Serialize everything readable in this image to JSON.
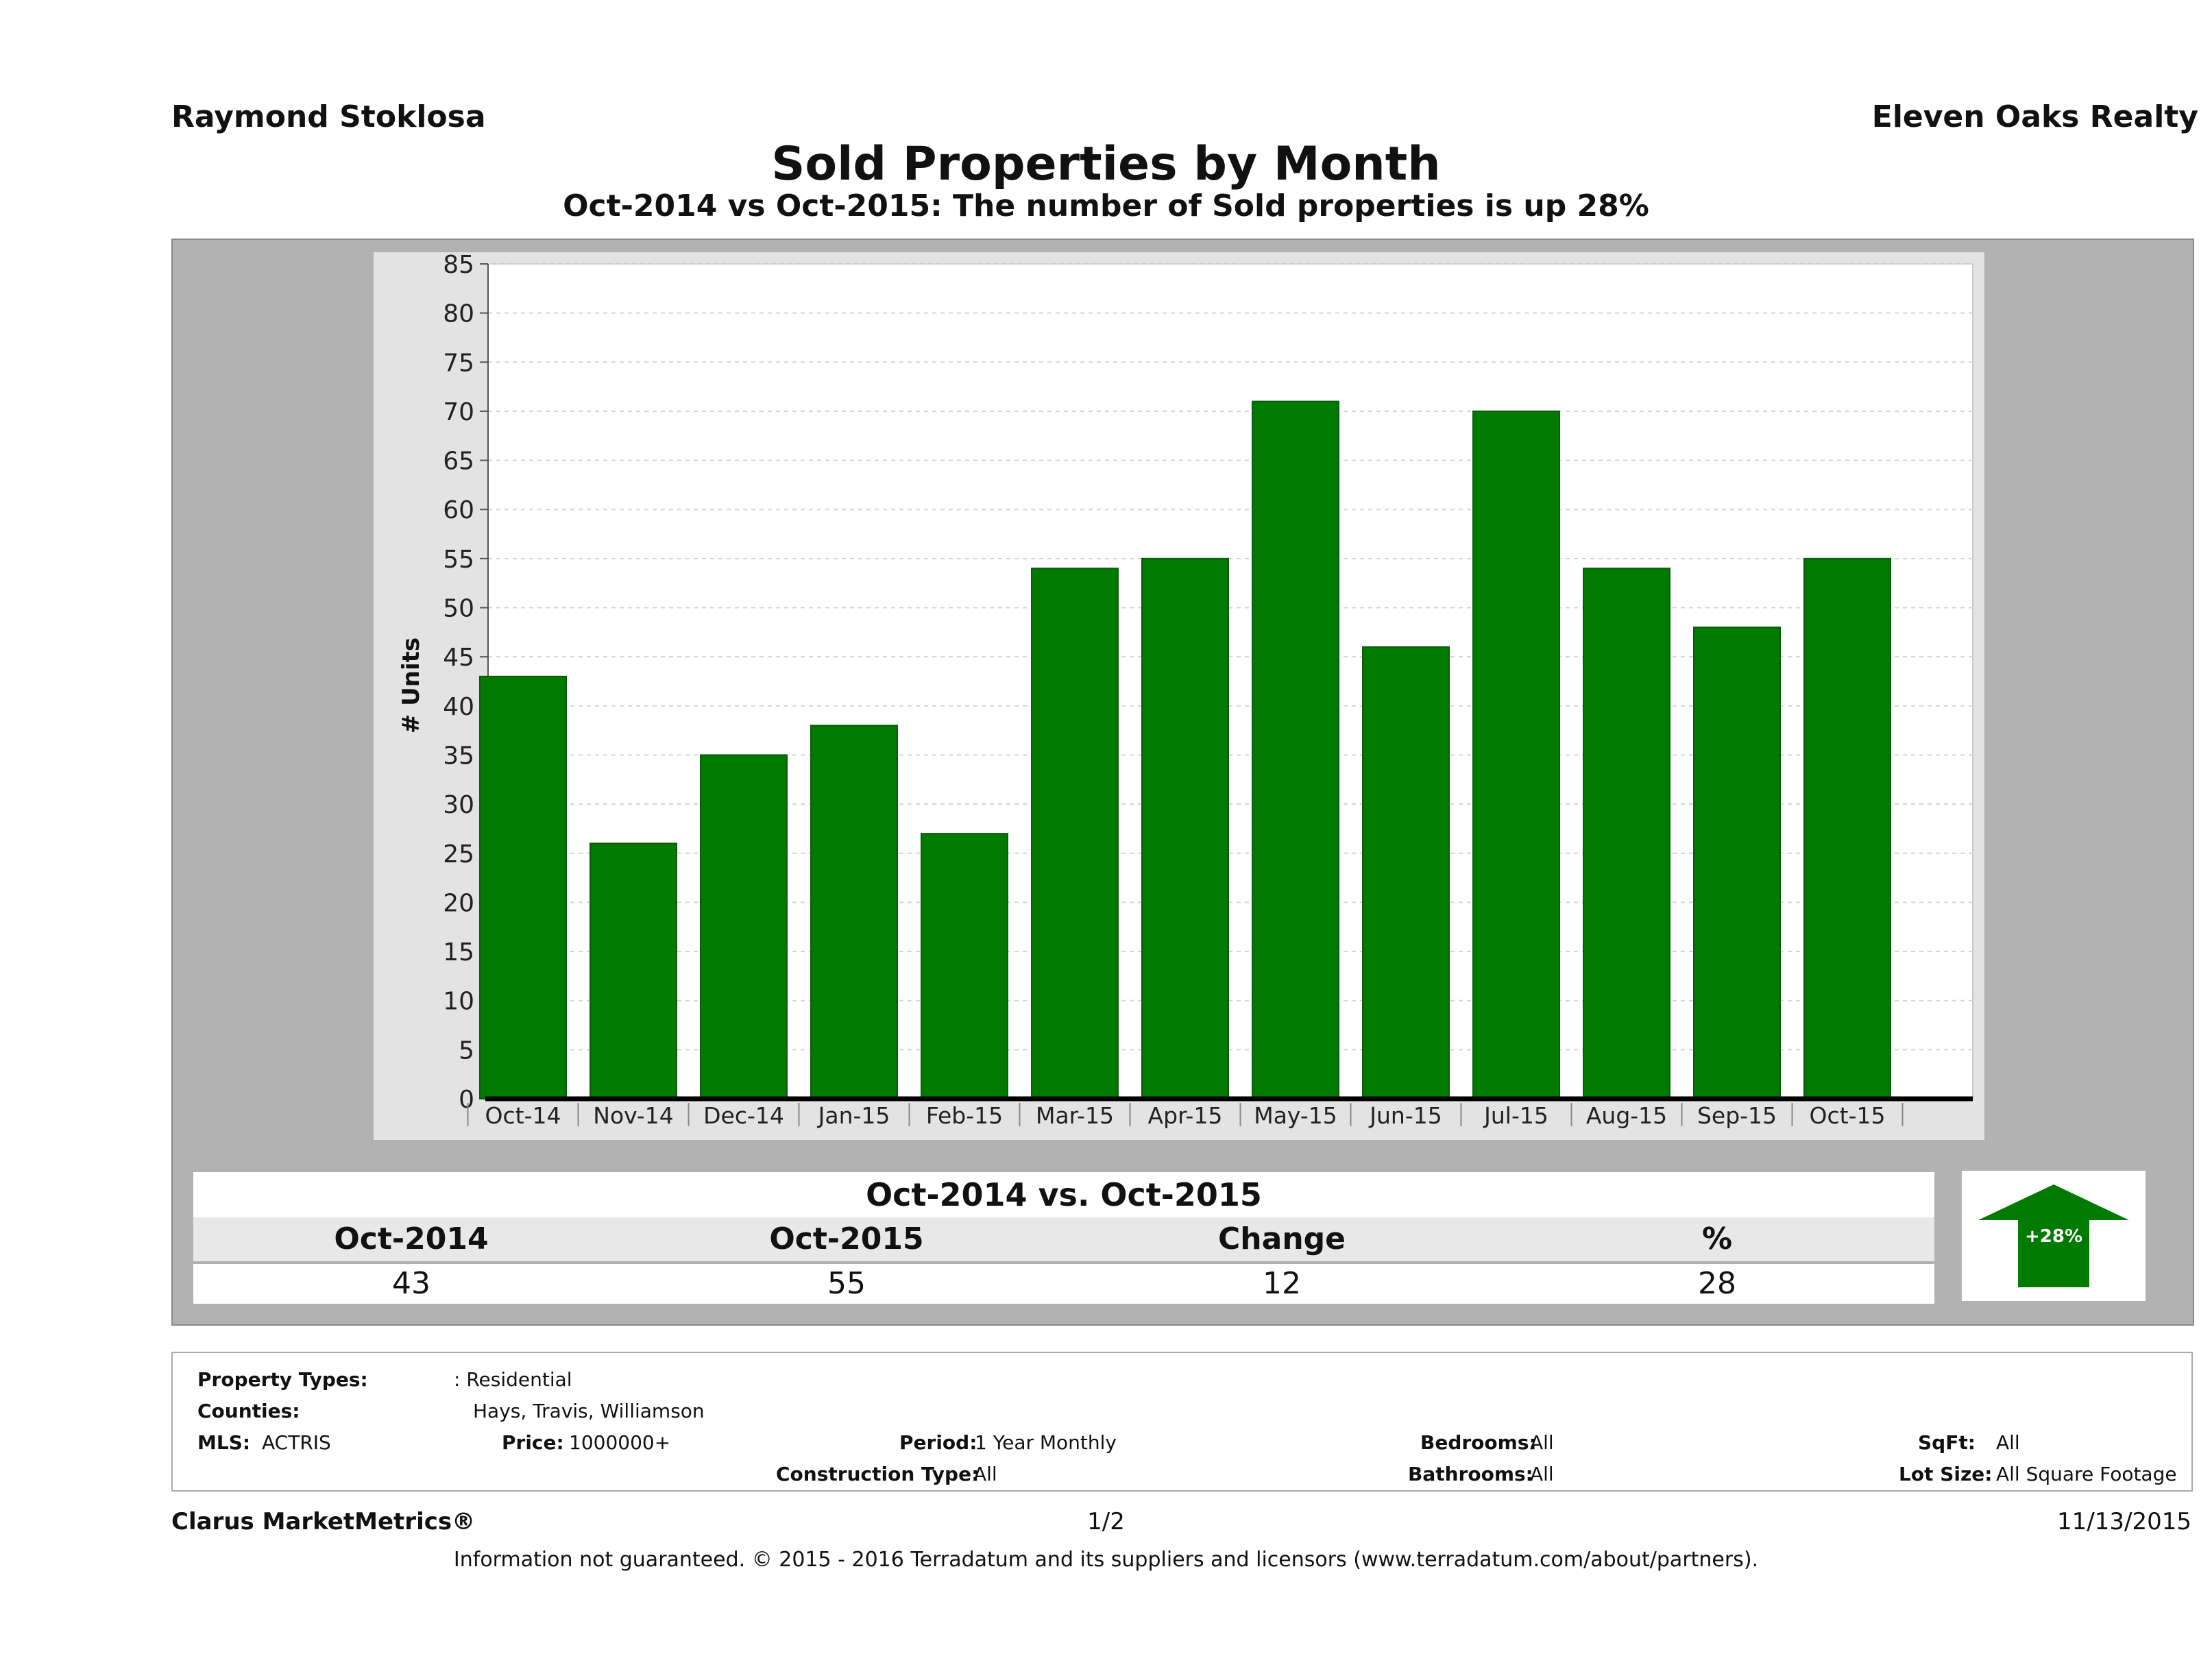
{
  "header": {
    "agent": "Raymond Stoklosa",
    "brokerage": "Eleven Oaks Realty",
    "title": "Sold Properties by Month",
    "subtitle": "Oct-2014 vs Oct-2015: The number of Sold   properties is up 28%"
  },
  "chart_data": {
    "type": "bar",
    "categories": [
      "Oct-14",
      "Nov-14",
      "Dec-14",
      "Jan-15",
      "Feb-15",
      "Mar-15",
      "Apr-15",
      "May-15",
      "Jun-15",
      "Jul-15",
      "Aug-15",
      "Sep-15",
      "Oct-15"
    ],
    "values": [
      43,
      26,
      35,
      38,
      27,
      54,
      55,
      71,
      46,
      70,
      54,
      48,
      55
    ],
    "ylabel": "# Units",
    "ylim": [
      0,
      85
    ],
    "yticks": [
      0,
      5,
      10,
      15,
      20,
      25,
      30,
      35,
      40,
      45,
      50,
      55,
      60,
      65,
      70,
      75,
      80,
      85
    ],
    "grid": true,
    "bar_color": "#007a00"
  },
  "comparison": {
    "header": "Oct-2014 vs. Oct-2015",
    "columns": [
      "Oct-2014",
      "Oct-2015",
      "Change",
      "%"
    ],
    "values": [
      "43",
      "55",
      "12",
      "28"
    ],
    "badge": "+28%",
    "badge_color": "#007a00"
  },
  "filters": {
    "property_types_label": "Property Types:",
    "property_types_value": ": Residential",
    "counties_label": "Counties:",
    "counties_value": "Hays, Travis, Williamson",
    "mls_label": "MLS:",
    "mls_value": "ACTRIS",
    "price_label": "Price:",
    "price_value": "1000000+",
    "period_label": "Period:",
    "period_value": "1 Year Monthly",
    "construction_label": "Construction Type:",
    "construction_value": "All",
    "bedrooms_label": "Bedrooms:",
    "bedrooms_value": "All",
    "bathrooms_label": "Bathrooms:",
    "bathrooms_value": "All",
    "sqft_label": "SqFt:",
    "sqft_value": "All",
    "lot_label": "Lot Size:",
    "lot_value": "All Square Footage"
  },
  "footer": {
    "brand": "Clarus MarketMetrics®",
    "page": "1/2",
    "date": "11/13/2015",
    "disclaimer": "Information not guaranteed. © 2015 - 2016 Terradatum and its suppliers and licensors (www.terradatum.com/about/partners)."
  }
}
